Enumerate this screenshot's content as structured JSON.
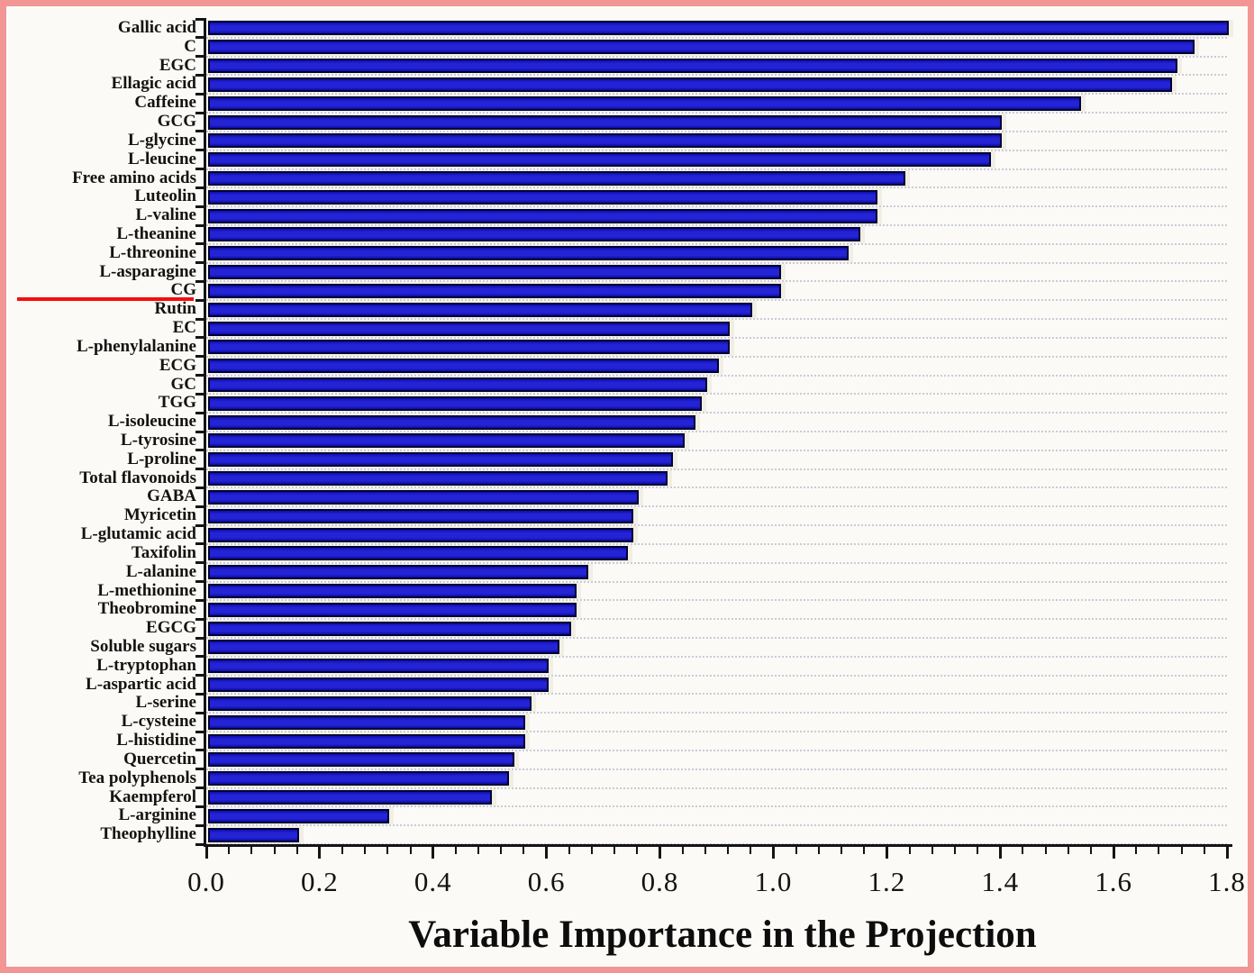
{
  "chart_data": {
    "type": "bar",
    "orientation": "horizontal",
    "title": "",
    "xlabel": "Variable Importance in the Projection",
    "ylabel": "",
    "xlim": [
      0.0,
      1.8
    ],
    "xtick_labels": [
      "0.0",
      "0.2",
      "0.4",
      "0.6",
      "0.8",
      "1.0",
      "1.2",
      "1.4",
      "1.6",
      "1.8"
    ],
    "minor_ticks_per_division": 4,
    "grid": "horizontal-dotted",
    "legend": "none",
    "categories": [
      "Gallic acid",
      "C",
      "EGC",
      "Ellagic acid",
      "Caffeine",
      "GCG",
      "L-glycine",
      "L-leucine",
      "Free amino acids",
      "Luteolin",
      "L-valine",
      "L-theanine",
      "L-threonine",
      "L-asparagine",
      "CG",
      "Rutin",
      "EC",
      "L-phenylalanine",
      "ECG",
      "GC",
      "TGG",
      "L-isoleucine",
      "L-tyrosine",
      "L-proline",
      "Total flavonoids",
      "GABA",
      "Myricetin",
      "L-glutamic acid",
      "Taxifolin",
      "L-alanine",
      "L-methionine",
      "Theobromine",
      "EGCG",
      "Soluble sugars",
      "L-tryptophan",
      "L-aspartic acid",
      "L-serine",
      "L-cysteine",
      "L-histidine",
      "Quercetin",
      "Tea polyphenols",
      "Kaempferol",
      "L-arginine",
      "Theophylline"
    ],
    "values": [
      1.8,
      1.74,
      1.71,
      1.7,
      1.54,
      1.4,
      1.4,
      1.38,
      1.23,
      1.18,
      1.18,
      1.15,
      1.13,
      1.01,
      1.01,
      0.96,
      0.92,
      0.92,
      0.9,
      0.88,
      0.87,
      0.86,
      0.84,
      0.82,
      0.81,
      0.76,
      0.75,
      0.75,
      0.74,
      0.67,
      0.65,
      0.65,
      0.64,
      0.62,
      0.6,
      0.6,
      0.57,
      0.56,
      0.56,
      0.54,
      0.53,
      0.5,
      0.32,
      0.16
    ],
    "annotations": [
      {
        "type": "red-threshold-underline",
        "description": "red horizontal line in the label margin under the CG label (VIP = 1 cutoff)",
        "below_category": "CG",
        "color": "#f50d0d"
      }
    ],
    "colors": {
      "bar_fill": "#2424d6",
      "bar_border": "#000033",
      "bar_halo": "#f1eee3",
      "grid_dots": "#c7ccd9",
      "axis": "#141414",
      "frame_border": "#f19595",
      "background": "#fbfaf6"
    }
  }
}
